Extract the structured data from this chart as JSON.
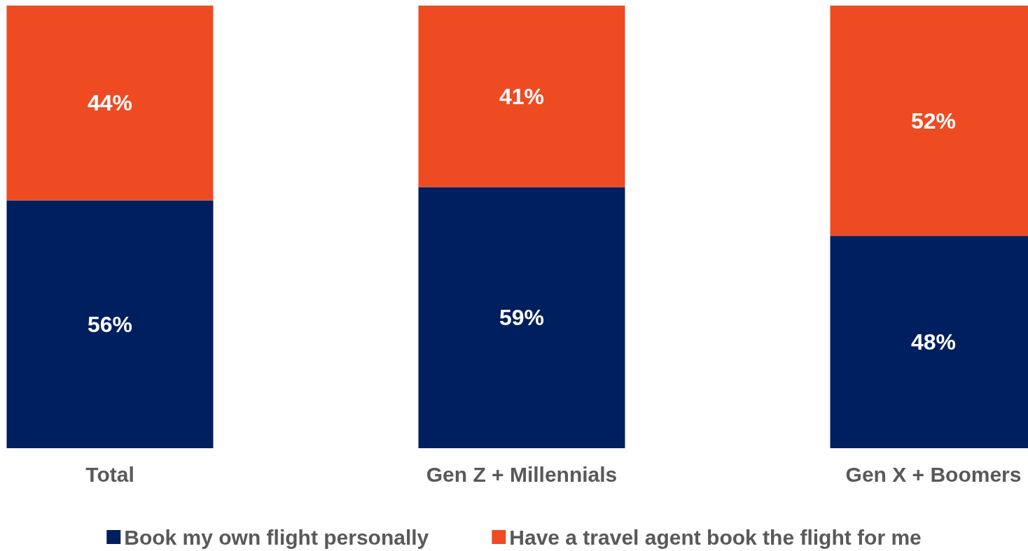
{
  "chart_data": {
    "type": "bar",
    "stacked": true,
    "legend": "bottom",
    "grid": false,
    "categories": [
      "Total",
      "Gen Z + Millennials",
      "Gen X + Boomers"
    ],
    "series": [
      {
        "name": "Book my own flight personally",
        "color": "#001f5f",
        "values": [
          56,
          59,
          48
        ],
        "value_labels": [
          "56%",
          "59%",
          "48%"
        ]
      },
      {
        "name": "Have a travel agent book the flight for me",
        "color": "#ee4b23",
        "values": [
          44,
          41,
          52
        ],
        "value_labels": [
          "44%",
          "41%",
          "52%"
        ]
      }
    ]
  }
}
